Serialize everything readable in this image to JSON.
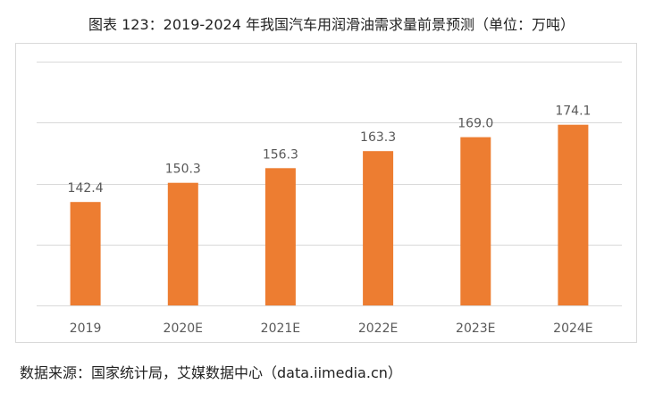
{
  "title": "图表 123：2019-2024 年我国汽车用润滑油需求量前景预测（单位：万吨）",
  "source": "数据来源：国家统计局，艾媒数据中心（data.iimedia.cn）",
  "colors": {
    "bar": "#ED7D31",
    "grid": "#D9D9D9",
    "label": "#595959"
  },
  "chart_data": {
    "type": "bar",
    "categories": [
      "2019",
      "2020E",
      "2021E",
      "2022E",
      "2023E",
      "2024E"
    ],
    "values": [
      142.4,
      150.3,
      156.3,
      163.3,
      169.0,
      174.1
    ],
    "value_labels": [
      "142.4",
      "150.3",
      "156.3",
      "163.3",
      "169.0",
      "174.1"
    ],
    "ylim": [
      100,
      200
    ],
    "y_axis_labels_shown": false,
    "grid": true,
    "legend": "none"
  }
}
